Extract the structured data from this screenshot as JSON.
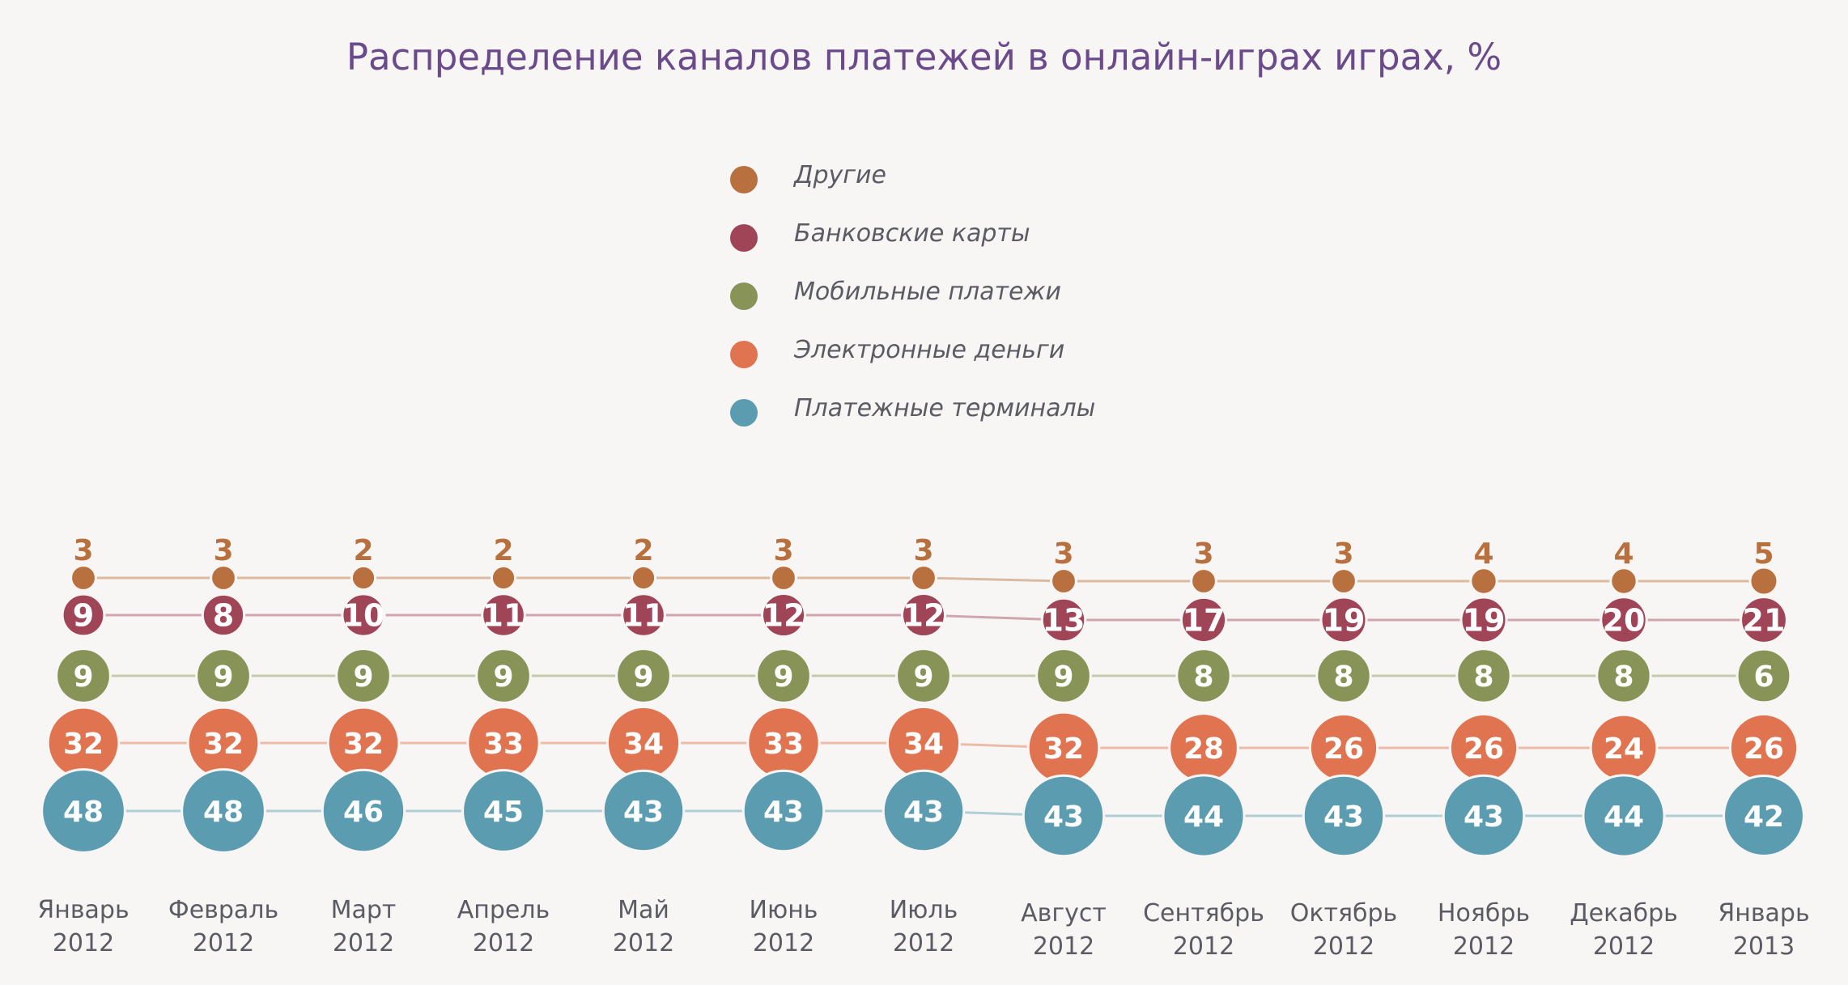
{
  "title": "Распределение каналов платежей в онлайн-играх играх, %",
  "colors": {
    "background": "#f8f6f4",
    "title": "#6b4a8c",
    "Другие": "#b8703e",
    "Банковские карты": "#a04458",
    "Мобильные платежи": "#889457",
    "Электронные деньги": "#e07450",
    "Платежные терминалы": "#5b9cb0",
    "axis_label": "#5b5b63"
  },
  "legend": [
    {
      "label": "Другие"
    },
    {
      "label": "Банковские карты"
    },
    {
      "label": "Мобильные платежи"
    },
    {
      "label": "Электронные деньги"
    },
    {
      "label": "Платежные терминалы"
    }
  ],
  "chart_data": {
    "type": "bubble-stack",
    "title": "Распределение каналов платежей в онлайн-играх играх, %",
    "categories": [
      [
        "Январь",
        "2012"
      ],
      [
        "Февраль",
        "2012"
      ],
      [
        "Март",
        "2012"
      ],
      [
        "Апрель",
        "2012"
      ],
      [
        "Май",
        "2012"
      ],
      [
        "Июнь",
        "2012"
      ],
      [
        "Июль",
        "2012"
      ],
      [
        "Август",
        "2012"
      ],
      [
        "Сентябрь",
        "2012"
      ],
      [
        "Октябрь",
        "2012"
      ],
      [
        "Ноябрь",
        "2012"
      ],
      [
        "Декабрь",
        "2012"
      ],
      [
        "Январь",
        "2013"
      ]
    ],
    "series": [
      {
        "name": "Платежные терминалы",
        "values": [
          48,
          48,
          46,
          45,
          43,
          43,
          43,
          43,
          44,
          43,
          43,
          44,
          42
        ]
      },
      {
        "name": "Электронные деньги",
        "values": [
          32,
          32,
          32,
          33,
          34,
          33,
          34,
          32,
          28,
          26,
          26,
          24,
          26
        ]
      },
      {
        "name": "Мобильные платежи",
        "values": [
          9,
          9,
          9,
          9,
          9,
          9,
          9,
          9,
          8,
          8,
          8,
          8,
          6
        ]
      },
      {
        "name": "Банковские карты",
        "values": [
          9,
          8,
          10,
          11,
          11,
          12,
          12,
          13,
          17,
          19,
          19,
          20,
          21
        ]
      },
      {
        "name": "Другие",
        "values": [
          3,
          3,
          2,
          2,
          2,
          3,
          3,
          3,
          3,
          3,
          4,
          4,
          5
        ]
      }
    ],
    "legend_position": "top-center"
  }
}
